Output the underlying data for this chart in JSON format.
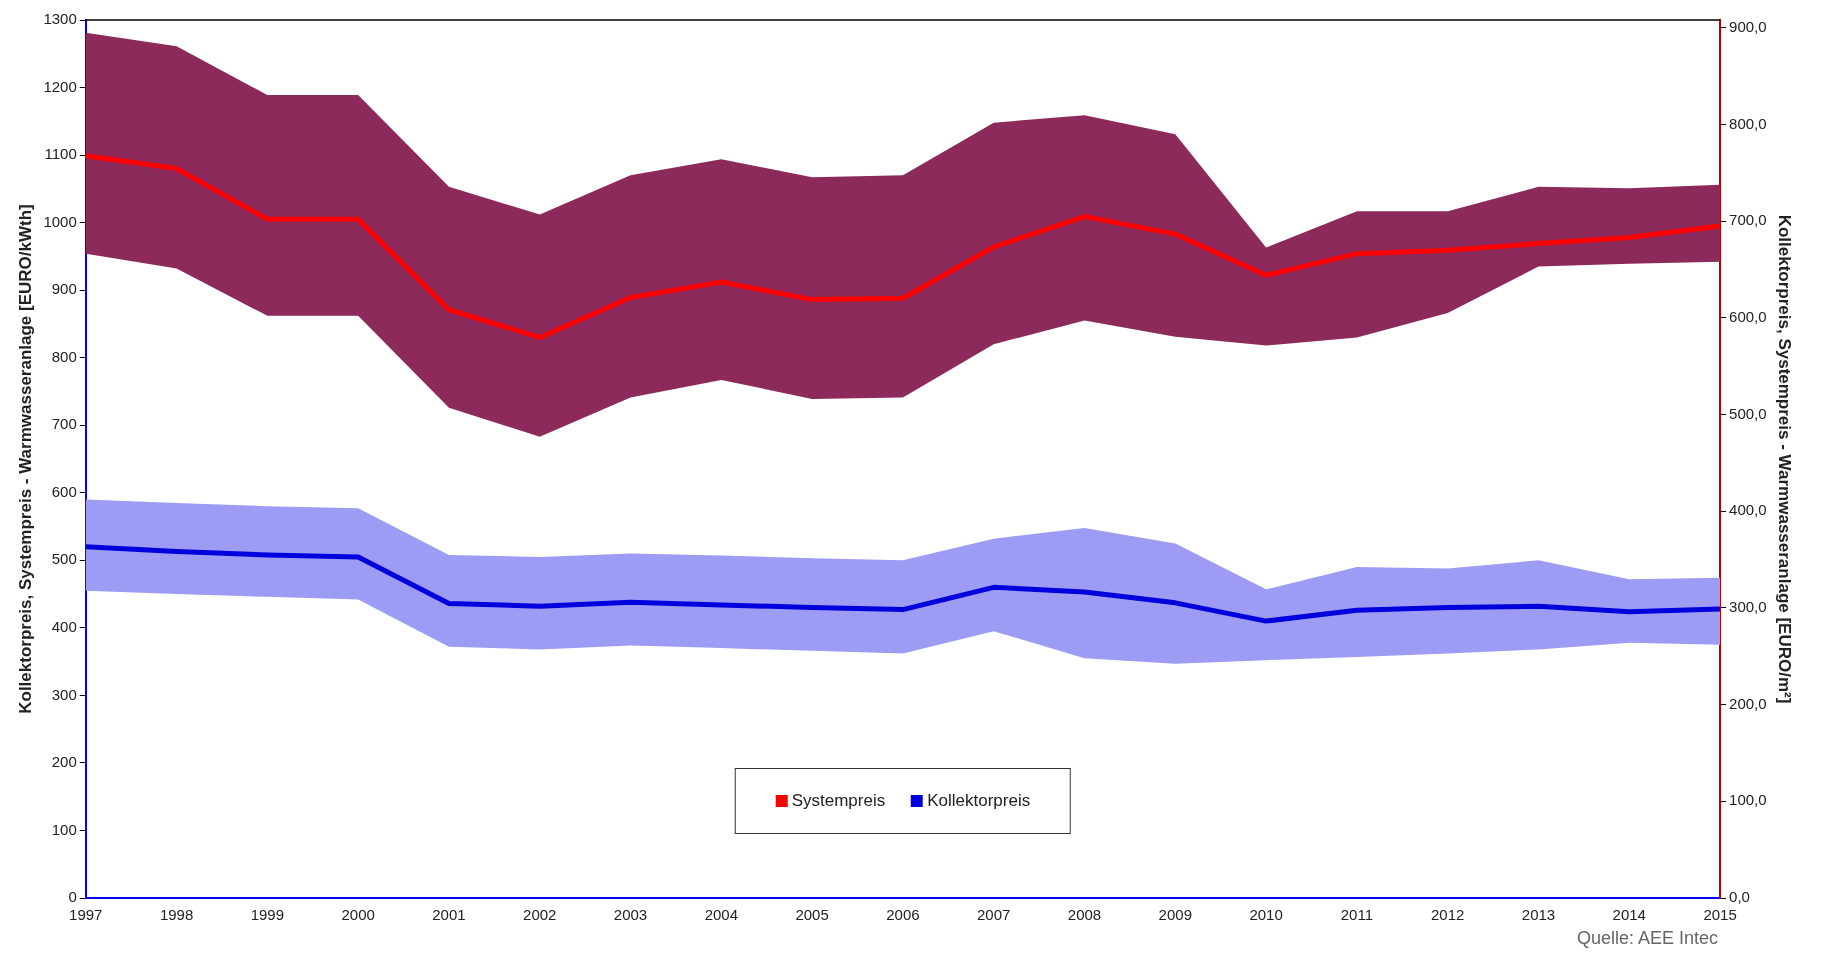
{
  "chart_data": {
    "type": "line",
    "ylabel": "Kollektorpreis, Systempreis - Warmwasseranlage [EURO/kWth]",
    "y2label": "Kollektorpreis, Systempreis - Warmwasseranlage [EURO/m²]",
    "categories": [
      "1997",
      "1998",
      "1999",
      "2000",
      "2001",
      "2002",
      "2003",
      "2004",
      "2005",
      "2006",
      "2007",
      "2008",
      "2009",
      "2010",
      "2011",
      "2012",
      "2013",
      "2014",
      "2015"
    ],
    "series": [
      {
        "type": "area",
        "color": "#8c2a5c",
        "values": [
          null,
          null,
          null,
          null,
          null,
          null,
          null,
          null,
          null,
          null,
          null,
          null,
          null,
          null,
          null,
          null,
          null,
          null,
          null
        ],
        "lower": [
          954,
          932,
          862,
          862,
          726,
          683,
          741,
          767,
          739,
          741,
          820,
          855,
          831,
          818,
          830,
          866,
          935,
          939,
          942
        ],
        "upper": [
          1281,
          1261,
          1189,
          1189,
          1053,
          1012,
          1070,
          1094,
          1067,
          1070,
          1148,
          1159,
          1131,
          963,
          1017,
          1017,
          1053,
          1051,
          1056
        ]
      },
      {
        "type": "area",
        "color": "#9d9cf5",
        "values": [
          null,
          null,
          null,
          null,
          null,
          null,
          null,
          null,
          null,
          null,
          null,
          null,
          null,
          null,
          null,
          null,
          null,
          null,
          null
        ],
        "lower": [
          455,
          450,
          446,
          442,
          372,
          368,
          374,
          370,
          366,
          362,
          395,
          355,
          347,
          352,
          357,
          362,
          368,
          378,
          375
        ],
        "upper": [
          590,
          585,
          580,
          577,
          508,
          505,
          510,
          507,
          503,
          500,
          532,
          548,
          525,
          457,
          490,
          488,
          500,
          472,
          474
        ]
      },
      {
        "name": "Systempreis",
        "color": "#ff0000",
        "values": [
          1099,
          1080,
          1005,
          1005,
          871,
          830,
          889,
          912,
          886,
          888,
          964,
          1009,
          983,
          922,
          954,
          959,
          969,
          978,
          995
        ]
      },
      {
        "name": "Kollektorpreis",
        "color": "#0000dd",
        "values": [
          520,
          513,
          508,
          505,
          436,
          432,
          438,
          434,
          430,
          427,
          460,
          453,
          437,
          410,
          426,
          430,
          432,
          424,
          428
        ]
      }
    ],
    "ylim": [
      0,
      1300
    ],
    "yticks": [
      0,
      100,
      200,
      300,
      400,
      500,
      600,
      700,
      800,
      900,
      1000,
      1100,
      1200,
      1300
    ],
    "y2lim": [
      0,
      908
    ],
    "y2ticks": [
      {
        "value": 0,
        "label": "0,0"
      },
      {
        "value": 100,
        "label": "100,0"
      },
      {
        "value": 200,
        "label": "200,0"
      },
      {
        "value": 300,
        "label": "300,0"
      },
      {
        "value": 400,
        "label": "400,0"
      },
      {
        "value": 500,
        "label": "500,0"
      },
      {
        "value": 600,
        "label": "600,0"
      },
      {
        "value": 700,
        "label": "700,0"
      },
      {
        "value": 800,
        "label": "800,0"
      },
      {
        "value": 900,
        "label": "900,0"
      }
    ],
    "grid": false,
    "legend": "bottom",
    "marker": "none",
    "line_style": "solid",
    "annotations": [
      "Quelle: AEE Intec"
    ]
  }
}
